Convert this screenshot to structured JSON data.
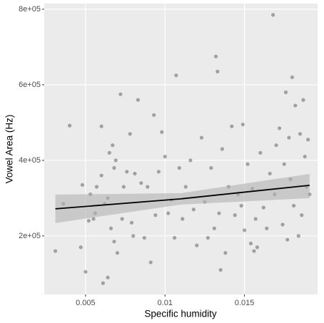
{
  "chart_data": {
    "type": "scatter",
    "x_label": "Specific humidity",
    "y_label": "Vowel Area (Hz)",
    "xlim": [
      0.0024,
      0.0196
    ],
    "ylim": [
      45000,
      815000
    ],
    "xticks": [
      0.005,
      0.01,
      0.015
    ],
    "yticks": [
      {
        "value": 200000,
        "label": "2e+05"
      },
      {
        "value": 400000,
        "label": "4e+05"
      },
      {
        "value": 600000,
        "label": "6e+05"
      },
      {
        "value": 800000,
        "label": "8e+05"
      }
    ],
    "grid": true,
    "color": "#555555",
    "fit_color": "#000000",
    "band_color": "#b3b3b3",
    "x": [
      0.0031,
      0.0036,
      0.004,
      0.0047,
      0.0048,
      0.005,
      0.0052,
      0.0055,
      0.0057,
      0.006,
      0.0061,
      0.0062,
      0.0064,
      0.0065,
      0.0066,
      0.0067,
      0.0068,
      0.0069,
      0.007,
      0.0072,
      0.0073,
      0.0074,
      0.0076,
      0.0078,
      0.0079,
      0.0081,
      0.0083,
      0.0085,
      0.0087,
      0.0089,
      0.0091,
      0.0093,
      0.0094,
      0.0096,
      0.0098,
      0.01,
      0.0102,
      0.0104,
      0.0106,
      0.0107,
      0.0109,
      0.0111,
      0.0113,
      0.0116,
      0.0118,
      0.012,
      0.0123,
      0.0125,
      0.0127,
      0.0129,
      0.0131,
      0.0132,
      0.0133,
      0.0134,
      0.0135,
      0.0136,
      0.0138,
      0.014,
      0.0142,
      0.0144,
      0.0146,
      0.0148,
      0.0149,
      0.015,
      0.0152,
      0.0154,
      0.0155,
      0.0156,
      0.0157,
      0.0158,
      0.016,
      0.0162,
      0.0164,
      0.0166,
      0.0168,
      0.0169,
      0.017,
      0.0172,
      0.0174,
      0.0175,
      0.0176,
      0.0177,
      0.0178,
      0.0179,
      0.018,
      0.0181,
      0.0182,
      0.0184,
      0.0185,
      0.0186,
      0.0187,
      0.0188,
      0.0189,
      0.019,
      0.0191,
      0.008,
      0.006,
      0.0056,
      0.0064,
      0.0068,
      0.0053
    ],
    "values": [
      160000,
      285000,
      492000,
      170000,
      335000,
      105000,
      240000,
      245000,
      330000,
      490000,
      75000,
      285000,
      90000,
      420000,
      220000,
      440000,
      185000,
      400000,
      155000,
      575000,
      245000,
      330000,
      370000,
      470000,
      235000,
      365000,
      560000,
      340000,
      195000,
      330000,
      130000,
      520000,
      255000,
      370000,
      475000,
      410000,
      260000,
      295000,
      195000,
      625000,
      380000,
      245000,
      330000,
      400000,
      270000,
      175000,
      460000,
      290000,
      195000,
      380000,
      220000,
      675000,
      635000,
      260000,
      110000,
      430000,
      155000,
      330000,
      490000,
      255000,
      310000,
      280000,
      495000,
      215000,
      390000,
      180000,
      325000,
      160000,
      245000,
      170000,
      420000,
      275000,
      220000,
      365000,
      785000,
      310000,
      440000,
      485000,
      230000,
      390000,
      580000,
      190000,
      460000,
      350000,
      620000,
      280000,
      545000,
      200000,
      470000,
      255000,
      560000,
      410000,
      330000,
      455000,
      310000,
      200000,
      360000,
      260000,
      300000,
      380000,
      310000
    ],
    "fit": {
      "x": [
        0.0031,
        0.011,
        0.0191
      ],
      "y": [
        271700,
        298100,
        334000
      ],
      "lower": [
        234000,
        283000,
        300000
      ],
      "upper": [
        309400,
        313200,
        364200
      ]
    }
  }
}
